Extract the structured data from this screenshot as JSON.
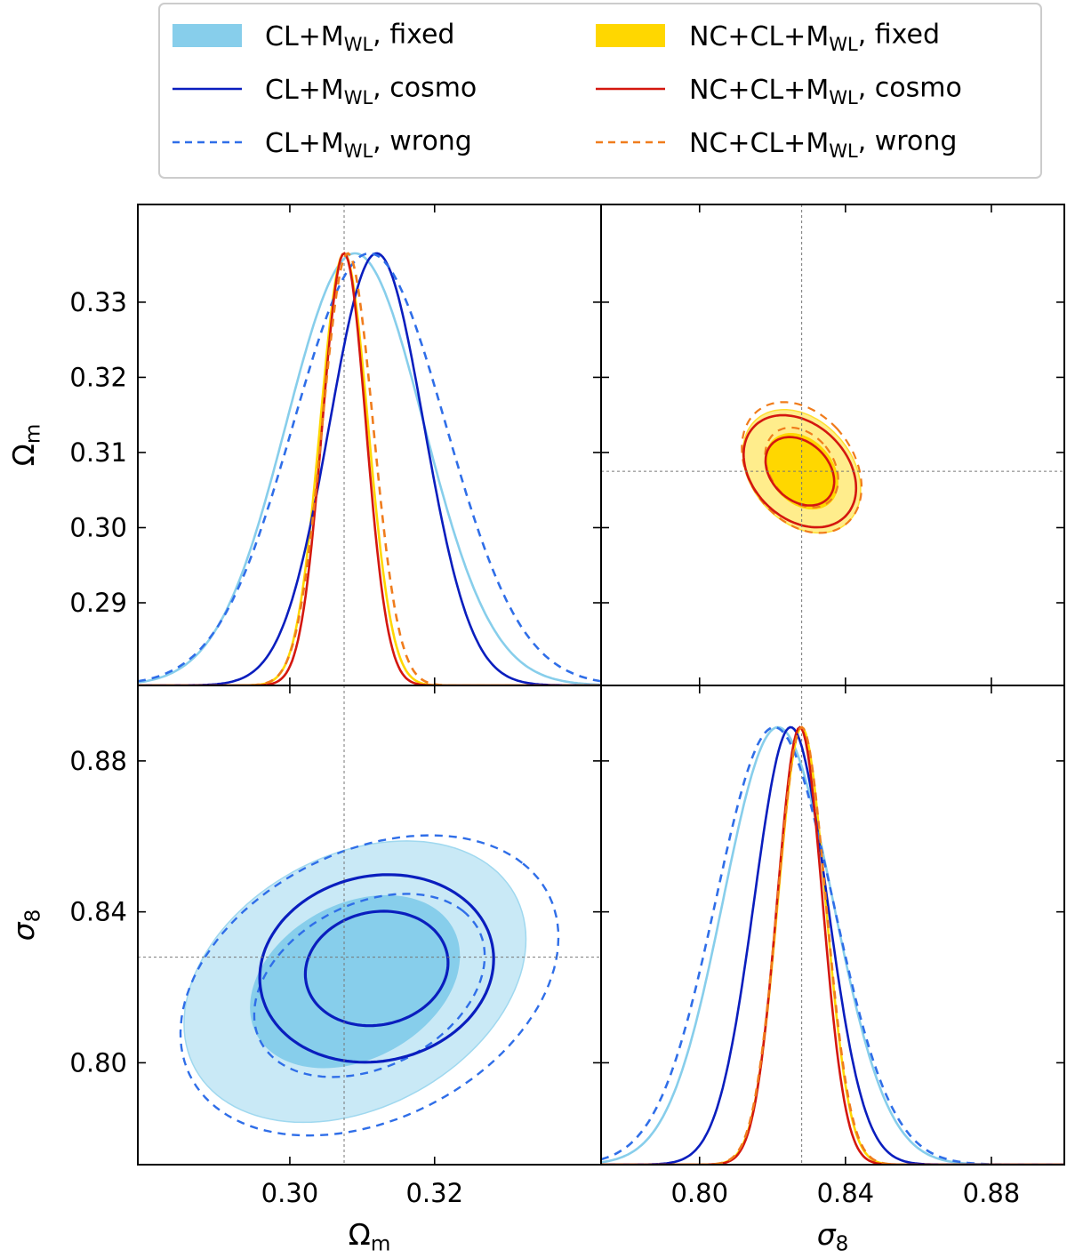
{
  "chart_data": {
    "type": "corner",
    "parameters": [
      {
        "name": "Omega_m",
        "axis_label": "Ω",
        "axis_label_sub": "m",
        "range": [
          0.279,
          0.343
        ],
        "truth": 0.3075,
        "x_ticks": [
          0.3,
          0.32
        ],
        "x_tick_labels": [
          "0.30",
          "0.32"
        ],
        "y_ticks": [
          0.29,
          0.3,
          0.31,
          0.32,
          0.33
        ],
        "y_tick_labels": [
          "0.29",
          "0.30",
          "0.31",
          "0.32",
          "0.33"
        ]
      },
      {
        "name": "sigma_8",
        "axis_label": "σ",
        "axis_label_sub": "8",
        "range": [
          0.773,
          0.9
        ],
        "truth": 0.828,
        "x_ticks": [
          0.8,
          0.84,
          0.88
        ],
        "x_tick_labels": [
          "0.80",
          "0.84",
          "0.88"
        ],
        "y_ticks": [
          0.8,
          0.84,
          0.88
        ],
        "y_tick_labels": [
          "0.80",
          "0.84",
          "0.88"
        ]
      }
    ],
    "legend": {
      "placement": "top",
      "entries": [
        {
          "id": "cl_fixed",
          "pre": "CL+M",
          "sub": "WL",
          "post": ", fixed",
          "style": "fill",
          "color": "#87ceeb"
        },
        {
          "id": "nc_fixed",
          "pre": "NC+CL+M",
          "sub": "WL",
          "post": ", fixed",
          "style": "fill",
          "color": "#ffd700"
        },
        {
          "id": "cl_cosmo",
          "pre": "CL+M",
          "sub": "WL",
          "post": ", cosmo",
          "style": "solid",
          "color": "#0a1ebe"
        },
        {
          "id": "nc_cosmo",
          "pre": "NC+CL+M",
          "sub": "WL",
          "post": ", cosmo",
          "style": "solid",
          "color": "#d4170f"
        },
        {
          "id": "cl_wrong",
          "pre": "CL+M",
          "sub": "WL",
          "post": ", wrong",
          "style": "dashed",
          "color": "#2f6ee8"
        },
        {
          "id": "nc_wrong",
          "pre": "NC+CL+M",
          "sub": "WL",
          "post": ", wrong",
          "style": "dashed",
          "color": "#f07c1c"
        }
      ]
    },
    "series": [
      {
        "id": "cl_fixed",
        "omega_mean": 0.309,
        "omega_sigma": 0.0095,
        "sigma8_mean": 0.8215,
        "sigma8_sigma": 0.015,
        "rho": 0.3
      },
      {
        "id": "cl_cosmo",
        "omega_mean": 0.312,
        "omega_sigma": 0.0065,
        "sigma8_mean": 0.825,
        "sigma8_sigma": 0.01,
        "rho": 0.1
      },
      {
        "id": "cl_wrong",
        "omega_mean": 0.311,
        "omega_sigma": 0.0105,
        "sigma8_mean": 0.8205,
        "sigma8_sigma": 0.016,
        "rho": 0.32
      },
      {
        "id": "nc_fixed",
        "omega_mean": 0.3075,
        "omega_sigma": 0.0033,
        "sigma8_mean": 0.828,
        "sigma8_sigma": 0.0065,
        "rho": -0.3
      },
      {
        "id": "nc_cosmo",
        "omega_mean": 0.3075,
        "omega_sigma": 0.003,
        "sigma8_mean": 0.8275,
        "sigma8_sigma": 0.0062,
        "rho": -0.3
      },
      {
        "id": "nc_wrong",
        "omega_mean": 0.308,
        "omega_sigma": 0.0035,
        "sigma8_mean": 0.828,
        "sigma8_sigma": 0.0066,
        "rho": -0.3
      }
    ],
    "contour_levels": [
      "68%",
      "95%"
    ],
    "grid": false
  }
}
